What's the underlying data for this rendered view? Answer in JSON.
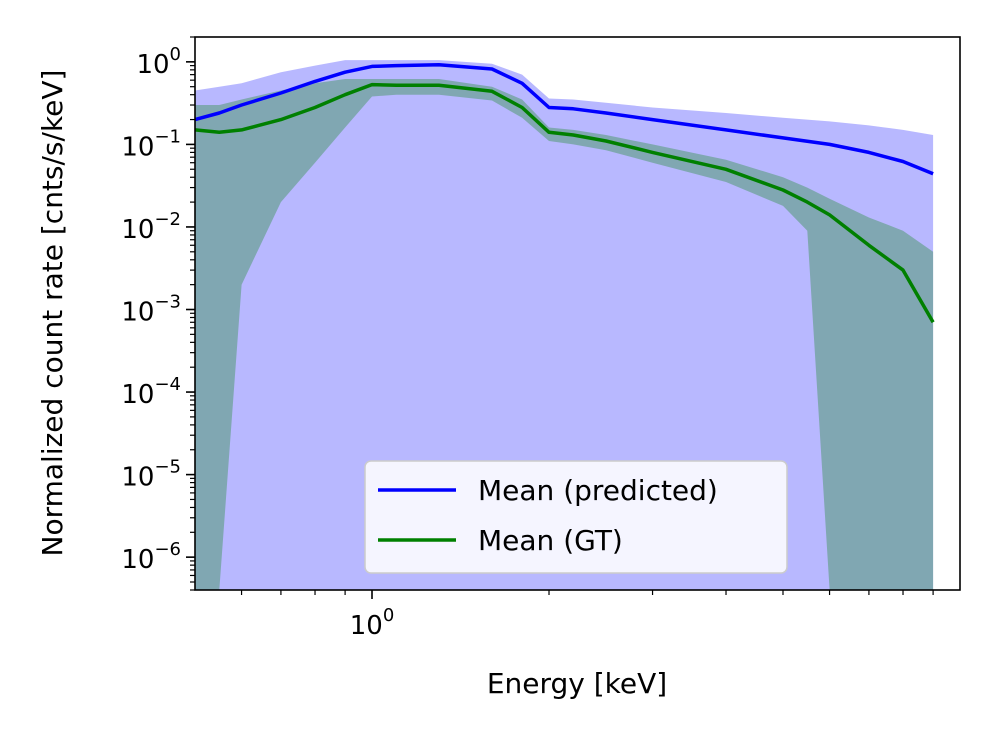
{
  "chart_data": {
    "type": "line",
    "xlabel": "Energy [keV]",
    "ylabel": "Normalized count rate [cnts/s/keV]",
    "xscale": "log",
    "yscale": "log",
    "xlim": [
      0.5,
      10.0
    ],
    "ylim": [
      4e-07,
      2.0
    ],
    "x_major_ticks": [
      {
        "value": 1.0,
        "base": "10",
        "exp": "0"
      }
    ],
    "x_minor_ticks": [
      0.6,
      0.7,
      0.8,
      0.9,
      2,
      3,
      4,
      5,
      6,
      7,
      8,
      9
    ],
    "y_major_ticks": [
      {
        "value": 1.0,
        "base": "10",
        "exp": "0"
      },
      {
        "value": 0.1,
        "base": "10",
        "exp": "−1"
      },
      {
        "value": 0.01,
        "base": "10",
        "exp": "−2"
      },
      {
        "value": 0.001,
        "base": "10",
        "exp": "−3"
      },
      {
        "value": 0.0001,
        "base": "10",
        "exp": "−4"
      },
      {
        "value": 1e-05,
        "base": "10",
        "exp": "−5"
      },
      {
        "value": 1e-06,
        "base": "10",
        "exp": "−6"
      }
    ],
    "series": [
      {
        "name": "Mean (predicted)",
        "color": "#0000ff",
        "band_color": "#0000ff",
        "band_opacity": 0.28,
        "x": [
          0.5,
          0.55,
          0.6,
          0.7,
          0.8,
          0.9,
          1.0,
          1.1,
          1.3,
          1.6,
          1.8,
          2.0,
          2.2,
          2.5,
          3.0,
          4.0,
          5.0,
          6.0,
          7.0,
          8.0,
          9.0
        ],
        "mean": [
          0.2,
          0.24,
          0.3,
          0.42,
          0.58,
          0.75,
          0.88,
          0.9,
          0.92,
          0.82,
          0.55,
          0.28,
          0.27,
          0.24,
          0.2,
          0.15,
          0.12,
          0.1,
          0.08,
          0.062,
          0.044
        ],
        "band_upper": [
          0.45,
          0.5,
          0.55,
          0.75,
          0.9,
          1.05,
          1.05,
          1.05,
          1.05,
          0.95,
          0.7,
          0.36,
          0.35,
          0.32,
          0.28,
          0.24,
          0.21,
          0.19,
          0.17,
          0.15,
          0.13
        ],
        "band_lower": [
          4e-07,
          4e-07,
          4e-07,
          4e-07,
          4e-07,
          4e-07,
          4e-07,
          4e-07,
          4e-07,
          4e-07,
          4e-07,
          4e-07,
          4e-07,
          4e-07,
          4e-07,
          4e-07,
          4e-07,
          4e-07,
          4e-07,
          4e-07,
          4e-07
        ]
      },
      {
        "name": "Mean (GT)",
        "color": "#008000",
        "band_color": "#008000",
        "band_opacity": 0.3,
        "x": [
          0.5,
          0.55,
          0.6,
          0.7,
          0.8,
          0.9,
          1.0,
          1.1,
          1.3,
          1.6,
          1.8,
          2.0,
          2.2,
          2.5,
          3.0,
          4.0,
          5.0,
          5.5,
          6.0,
          7.0,
          8.0,
          9.0
        ],
        "mean": [
          0.15,
          0.14,
          0.15,
          0.2,
          0.28,
          0.4,
          0.53,
          0.52,
          0.52,
          0.44,
          0.28,
          0.14,
          0.13,
          0.11,
          0.08,
          0.05,
          0.028,
          0.02,
          0.014,
          0.006,
          0.003,
          0.0007
        ],
        "band_upper": [
          0.3,
          0.3,
          0.35,
          0.45,
          0.55,
          0.62,
          0.62,
          0.62,
          0.62,
          0.5,
          0.35,
          0.16,
          0.15,
          0.13,
          0.1,
          0.065,
          0.04,
          0.03,
          0.022,
          0.013,
          0.009,
          0.005
        ],
        "band_lower": [
          4e-07,
          4e-07,
          0.002,
          0.02,
          0.06,
          0.16,
          0.38,
          0.4,
          0.4,
          0.34,
          0.21,
          0.11,
          0.1,
          0.085,
          0.06,
          0.035,
          0.018,
          0.009,
          4e-07,
          4e-07,
          4e-07,
          4e-07
        ]
      }
    ],
    "legend": {
      "placement": "lower-center",
      "entries": [
        {
          "label": "Mean (predicted)",
          "color": "#0000ff"
        },
        {
          "label": "Mean (GT)",
          "color": "#008000"
        }
      ]
    }
  }
}
